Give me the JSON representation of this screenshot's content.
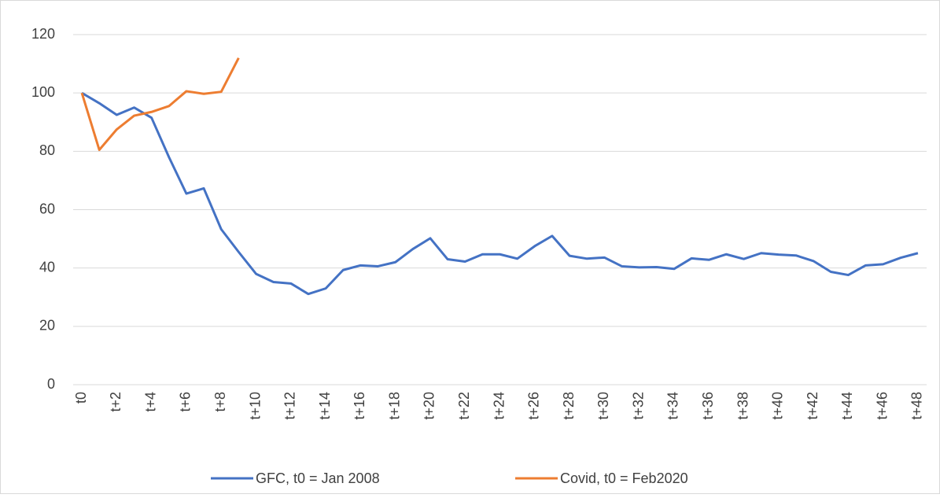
{
  "chart_data": {
    "type": "line",
    "categories": [
      "t0",
      null,
      "t+2",
      null,
      "t+4",
      null,
      "t+6",
      null,
      "t+8",
      null,
      "t+10",
      null,
      "t+12",
      null,
      "t+14",
      null,
      "t+16",
      null,
      "t+18",
      null,
      "t+20",
      null,
      "t+22",
      null,
      "t+24",
      null,
      "t+26",
      null,
      "t+28",
      null,
      "t+30",
      null,
      "t+32",
      null,
      "t+34",
      null,
      "t+36",
      null,
      "t+38",
      null,
      "t+40",
      null,
      "t+42",
      null,
      "t+44",
      null,
      "t+46",
      null,
      "t+48"
    ],
    "series": [
      {
        "name": "GFC, t0 = Jan 2008",
        "color": "#4472c4",
        "values": [
          100,
          96.5,
          92.5,
          95,
          91.5,
          78,
          65.5,
          67.3,
          53.3,
          45.5,
          38,
          35.2,
          34.7,
          31.1,
          33,
          39.3,
          40.9,
          40.6,
          42,
          46.5,
          50.2,
          43,
          42.2,
          44.7,
          44.7,
          43.2,
          47.5,
          51,
          44.2,
          43.2,
          43.6,
          40.6,
          40.2,
          40.3,
          39.7,
          43.3,
          42.8,
          44.7,
          43.1,
          45.1,
          44.6,
          44.3,
          42.4,
          38.7,
          37.6,
          40.9,
          41.3,
          43.5,
          45.1
        ]
      },
      {
        "name": "Covid, t0 = Feb2020",
        "color": "#ed7d31",
        "values": [
          100,
          80.5,
          87.5,
          92.2,
          93.5,
          95.5,
          100.6,
          99.7,
          100.4,
          112,
          null,
          null,
          null,
          null,
          null,
          null,
          null,
          null,
          null,
          null,
          null,
          null,
          null,
          null,
          null,
          null,
          null,
          null,
          null,
          null,
          null,
          null,
          null,
          null,
          null,
          null,
          null,
          null,
          null,
          null,
          null,
          null,
          null,
          null,
          null,
          null,
          null,
          null,
          null
        ]
      }
    ],
    "ylim": [
      0,
      120
    ],
    "yticks": [
      0,
      20,
      40,
      60,
      80,
      100,
      120
    ],
    "grid": true,
    "legend": "bottom"
  }
}
